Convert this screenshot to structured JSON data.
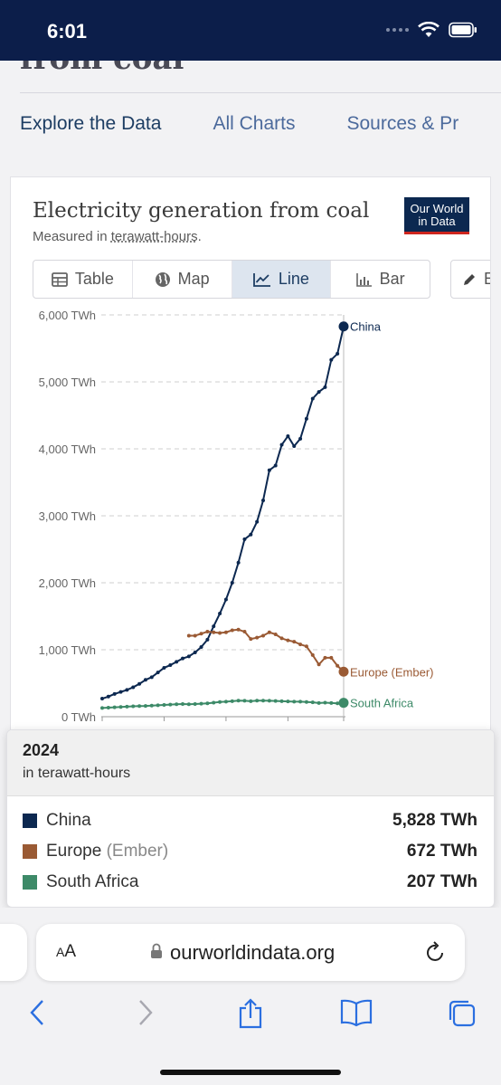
{
  "status_bar": {
    "time": "6:01"
  },
  "article": {
    "title_peek": "from coal"
  },
  "subnav": {
    "items": [
      "Explore the Data",
      "All Charts",
      "Sources & Pr"
    ]
  },
  "chart_card": {
    "title": "Electricity generation from coal",
    "subtitle_prefix": "Measured in ",
    "subtitle_link": "terawatt-hours",
    "subtitle_suffix": ".",
    "logo_line1": "Our World",
    "logo_line2": "in Data",
    "tabs": [
      "Table",
      "Map",
      "Line",
      "Bar"
    ],
    "active_tab": "Line",
    "edit_label": "Ed"
  },
  "chart_data": {
    "type": "line",
    "ylim": [
      0,
      6000
    ],
    "y_ticks": [
      "6,000 TWh",
      "5,000 TWh",
      "4,000 TWh",
      "3,000 TWh",
      "2,000 TWh",
      "1,000 TWh",
      "0 TWh"
    ],
    "y_tick_values": [
      6000,
      5000,
      4000,
      3000,
      2000,
      1000,
      0
    ],
    "xlim": [
      1985,
      2024
    ],
    "grid": true,
    "series": [
      {
        "name": "China",
        "color": "#0c2850",
        "x": [
          1985,
          1986,
          1987,
          1988,
          1989,
          1990,
          1991,
          1992,
          1993,
          1994,
          1995,
          1996,
          1997,
          1998,
          1999,
          2000,
          2001,
          2002,
          2003,
          2004,
          2005,
          2006,
          2007,
          2008,
          2009,
          2010,
          2011,
          2012,
          2013,
          2014,
          2015,
          2016,
          2017,
          2018,
          2019,
          2020,
          2021,
          2022,
          2023,
          2024
        ],
        "y": [
          270,
          300,
          340,
          370,
          400,
          440,
          490,
          550,
          590,
          660,
          730,
          770,
          820,
          870,
          900,
          960,
          1040,
          1150,
          1350,
          1540,
          1750,
          2000,
          2300,
          2650,
          2720,
          2910,
          3230,
          3680,
          3750,
          4060,
          4190,
          4040,
          4150,
          4450,
          4750,
          4850,
          4920,
          5330,
          5420,
          5828
        ]
      },
      {
        "name": "Europe (Ember)",
        "color": "#9a5a34",
        "x": [
          1999,
          2000,
          2001,
          2002,
          2003,
          2004,
          2005,
          2006,
          2007,
          2008,
          2009,
          2010,
          2011,
          2012,
          2013,
          2014,
          2015,
          2016,
          2017,
          2018,
          2019,
          2020,
          2021,
          2022,
          2023,
          2024
        ],
        "y": [
          1210,
          1210,
          1240,
          1270,
          1260,
          1250,
          1260,
          1290,
          1300,
          1270,
          1160,
          1180,
          1210,
          1260,
          1230,
          1170,
          1140,
          1120,
          1080,
          1050,
          920,
          780,
          880,
          880,
          760,
          672
        ]
      },
      {
        "name": "South Africa",
        "color": "#3d8a68",
        "x": [
          1985,
          1986,
          1987,
          1988,
          1989,
          1990,
          1991,
          1992,
          1993,
          1994,
          1995,
          1996,
          1997,
          1998,
          1999,
          2000,
          2001,
          2002,
          2003,
          2004,
          2005,
          2006,
          2007,
          2008,
          2009,
          2010,
          2011,
          2012,
          2013,
          2014,
          2015,
          2016,
          2017,
          2018,
          2019,
          2020,
          2021,
          2022,
          2023,
          2024
        ],
        "y": [
          130,
          135,
          140,
          145,
          150,
          155,
          158,
          160,
          165,
          170,
          175,
          180,
          185,
          190,
          185,
          190,
          195,
          200,
          210,
          220,
          225,
          232,
          240,
          238,
          232,
          240,
          240,
          238,
          235,
          232,
          228,
          225,
          225,
          220,
          215,
          205,
          210,
          205,
          200,
          207
        ]
      }
    ]
  },
  "data_panel": {
    "year": "2024",
    "unit": "in terawatt-hours",
    "rows": [
      {
        "name": "China",
        "suffix": "",
        "value": "5,828 TWh",
        "color": "#0c2850"
      },
      {
        "name": "Europe",
        "suffix": "(Ember)",
        "value": "672 TWh",
        "color": "#9a5a34"
      },
      {
        "name": "South Africa",
        "suffix": "",
        "value": "207 TWh",
        "color": "#3d8a68"
      }
    ]
  },
  "browser": {
    "aa_label_big": "A",
    "aa_label_small": "A",
    "url": "ourworldindata.org"
  }
}
